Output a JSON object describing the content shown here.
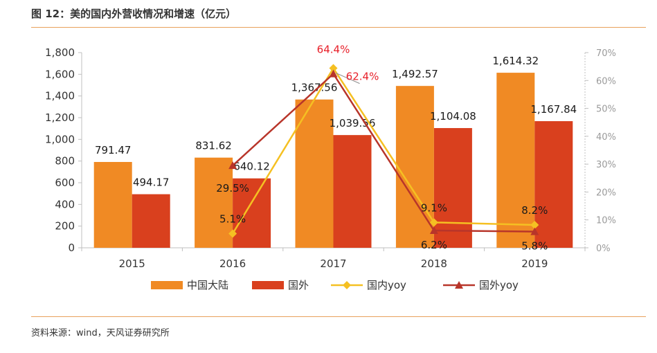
{
  "title": "图 12：美的国内外营收情况和增速（亿元）",
  "source": "资料来源：wind，天风证券研究所",
  "colors": {
    "domestic_bar": "#f08a24",
    "overseas_bar": "#d9401e",
    "domestic_yoy": "#f5c022",
    "overseas_yoy": "#b8352a",
    "highlight_label": "#e8202a",
    "rule": "#e8a05a"
  },
  "chart_data": {
    "type": "bar",
    "categories": [
      "2015",
      "2016",
      "2017",
      "2018",
      "2019"
    ],
    "left_axis": {
      "range": [
        0,
        1800
      ],
      "ticks": [
        "0",
        "200",
        "400",
        "600",
        "800",
        "1,000",
        "1,200",
        "1,400",
        "1,600",
        "1,800"
      ]
    },
    "right_axis": {
      "range": [
        0,
        70
      ],
      "ticks": [
        "0%",
        "10%",
        "20%",
        "30%",
        "40%",
        "50%",
        "60%",
        "70%"
      ]
    },
    "series": [
      {
        "name": "中国大陆",
        "kind": "bar",
        "axis": "left",
        "values": [
          791.47,
          831.62,
          1367.56,
          1492.57,
          1614.32
        ],
        "labels": [
          "791.47",
          "831.62",
          "1,367.56",
          "1,492.57",
          "1,614.32"
        ]
      },
      {
        "name": "国外",
        "kind": "bar",
        "axis": "left",
        "values": [
          494.17,
          640.12,
          1039.56,
          1104.08,
          1167.84
        ],
        "labels": [
          "494.17",
          "640.12",
          "1,039.56",
          "1,104.08",
          "1,167.84"
        ]
      },
      {
        "name": "国内yoy",
        "kind": "line",
        "axis": "right",
        "marker": "diamond",
        "x": [
          "2016",
          "2017",
          "2018",
          "2019"
        ],
        "values": [
          5.1,
          64.4,
          9.1,
          8.2
        ],
        "labels": [
          "5.1%",
          "64.4%",
          "9.1%",
          "8.2%"
        ]
      },
      {
        "name": "国外yoy",
        "kind": "line",
        "axis": "right",
        "marker": "triangle",
        "x": [
          "2016",
          "2017",
          "2018",
          "2019"
        ],
        "values": [
          29.5,
          62.4,
          6.2,
          5.8
        ],
        "labels": [
          "29.5%",
          "62.4%",
          "6.2%",
          "5.8%"
        ]
      }
    ],
    "highlighted_labels": [
      "64.4%",
      "62.4%"
    ],
    "legend_position": "bottom",
    "grid": false
  }
}
